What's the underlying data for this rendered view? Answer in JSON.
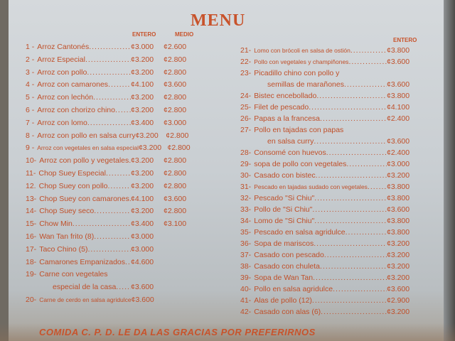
{
  "title": "MENU",
  "headers": {
    "entero": "ENTERO",
    "medio": "MEDIO"
  },
  "currency": "¢",
  "left_items": [
    {
      "num": "1 -",
      "name": "Arroz Cantonés",
      "entero": "¢3.000",
      "medio": "¢2.600"
    },
    {
      "num": "2 -",
      "name": "Arroz Especial",
      "entero": "¢3.200",
      "medio": "¢2.800"
    },
    {
      "num": "3 -",
      "name": "Arroz con pollo",
      "entero": "¢3.200",
      "medio": "¢2.800"
    },
    {
      "num": "4 -",
      "name": "Arroz con camarones",
      "entero": "¢4.100",
      "medio": "¢3.600"
    },
    {
      "num": "5 -",
      "name": "Arroz con lechón",
      "entero": "¢3.200",
      "medio": "¢2.800"
    },
    {
      "num": "6 -",
      "name": "Arroz con chorizo chino",
      "entero": "¢3.200",
      "medio": "¢2.800"
    },
    {
      "num": "7 -",
      "name": "Arroz con lomo",
      "entero": "¢3.400",
      "medio": "¢3.000"
    },
    {
      "num": "8 -",
      "name": "Arroz con pollo en salsa curry",
      "entero": "¢3.200",
      "medio": "¢2.800"
    },
    {
      "num": "9 -",
      "name": "Arroz con vegetales en salsa especial",
      "entero": "¢3.200",
      "medio": "¢2.800"
    },
    {
      "num": "10-",
      "name": "Arroz con pollo y vegetales",
      "entero": "¢3.200",
      "medio": "¢2.800"
    },
    {
      "num": "11-",
      "name": "Chop Suey Especial",
      "entero": "¢3.200",
      "medio": "¢2.800"
    },
    {
      "num": "12.",
      "name": "Chop Suey con pollo",
      "entero": "¢3.200",
      "medio": "¢2.800"
    },
    {
      "num": "13-",
      "name": "Chop Suey con camarones",
      "entero": "¢4.100",
      "medio": "¢3.600"
    },
    {
      "num": "14-",
      "name": "Chop Suey seco",
      "entero": "¢3.200",
      "medio": "¢2.800"
    },
    {
      "num": "15-",
      "name": "Chow Min",
      "entero": "¢3.400",
      "medio": "¢3.100"
    },
    {
      "num": "16-",
      "name": "Wan Tan frito (8)",
      "entero": "¢3.000",
      "medio": ""
    },
    {
      "num": "17-",
      "name": "Taco Chino (5)",
      "entero": "¢3.000",
      "medio": ""
    },
    {
      "num": "18-",
      "name": "Camarones Empanizados",
      "entero": "¢4.600",
      "medio": ""
    },
    {
      "num": "19-",
      "name": "Carne con  vegetales",
      "cont": "especial de la casa",
      "entero": "¢3.600",
      "medio": ""
    },
    {
      "num": "20-",
      "name": "Carne de cerdo en salsa agridulce",
      "entero": "¢3.600",
      "medio": ""
    }
  ],
  "right_items": [
    {
      "num": "21-",
      "name": "Lomo con brócoli en salsa de ostión",
      "entero": "¢3.800"
    },
    {
      "num": "22-",
      "name": "Pollo con vegetales y champiñones",
      "entero": "¢3.600"
    },
    {
      "num": "23-",
      "name": "Picadillo chino con pollo y",
      "cont": "semillas de marañones",
      "entero": "¢3.600"
    },
    {
      "num": "24-",
      "name": "Bistec encebollado",
      "entero": "¢3.800"
    },
    {
      "num": "25-",
      "name": "Filet de pescado",
      "entero": "¢4.100"
    },
    {
      "num": "26-",
      "name": "Papas a la francesa",
      "entero": "¢2.400"
    },
    {
      "num": "27-",
      "name": "Pollo en tajadas con papas",
      "cont": "en salsa curry",
      "entero": "¢3.600"
    },
    {
      "num": "28-",
      "name": "Consomé con huevos",
      "entero": "¢2.400"
    },
    {
      "num": "29-",
      "name": "sopa de pollo con vegetales",
      "entero": "¢3.000"
    },
    {
      "num": "30-",
      "name": "Casado con bistec",
      "entero": "¢3.200"
    },
    {
      "num": "31-",
      "name": "Pescado en tajadas sudado con vegetales",
      "entero": "¢3.800"
    },
    {
      "num": "32-",
      "name": "Pescado \"Si Chiu\"",
      "entero": "¢3.800"
    },
    {
      "num": "33-",
      "name": "Pollo de \"Si Chiu\"",
      "entero": "¢3.600"
    },
    {
      "num": "34-",
      "name": "Lomo de \"Si Chiu\"",
      "entero": "¢3.800"
    },
    {
      "num": "35-",
      "name": "Pescado en salsa agridulce",
      "entero": "¢3.800"
    },
    {
      "num": "36-",
      "name": "Sopa de mariscos",
      "entero": "¢3.200"
    },
    {
      "num": "37-",
      "name": "Casado con pescado",
      "entero": "¢3.200"
    },
    {
      "num": "38-",
      "name": "Casado con chuleta",
      "entero": "¢3.200"
    },
    {
      "num": "39-",
      "name": "Sopa de Wan Tan",
      "entero": "¢3.200"
    },
    {
      "num": "40-",
      "name": "Pollo en salsa agridulce",
      "entero": "¢3.600"
    },
    {
      "num": "41-",
      "name": "Alas de pollo (12)",
      "entero": "¢2.900"
    },
    {
      "num": "42-",
      "name": "Casado con alas (6)",
      "entero": "¢3.200"
    }
  ],
  "footer": "COMIDA C. P. D. LE DA LAS GRACIAS POR PREFERIRNOS",
  "colors": {
    "text": "#c0502a",
    "paper": "#d0d4d7"
  }
}
